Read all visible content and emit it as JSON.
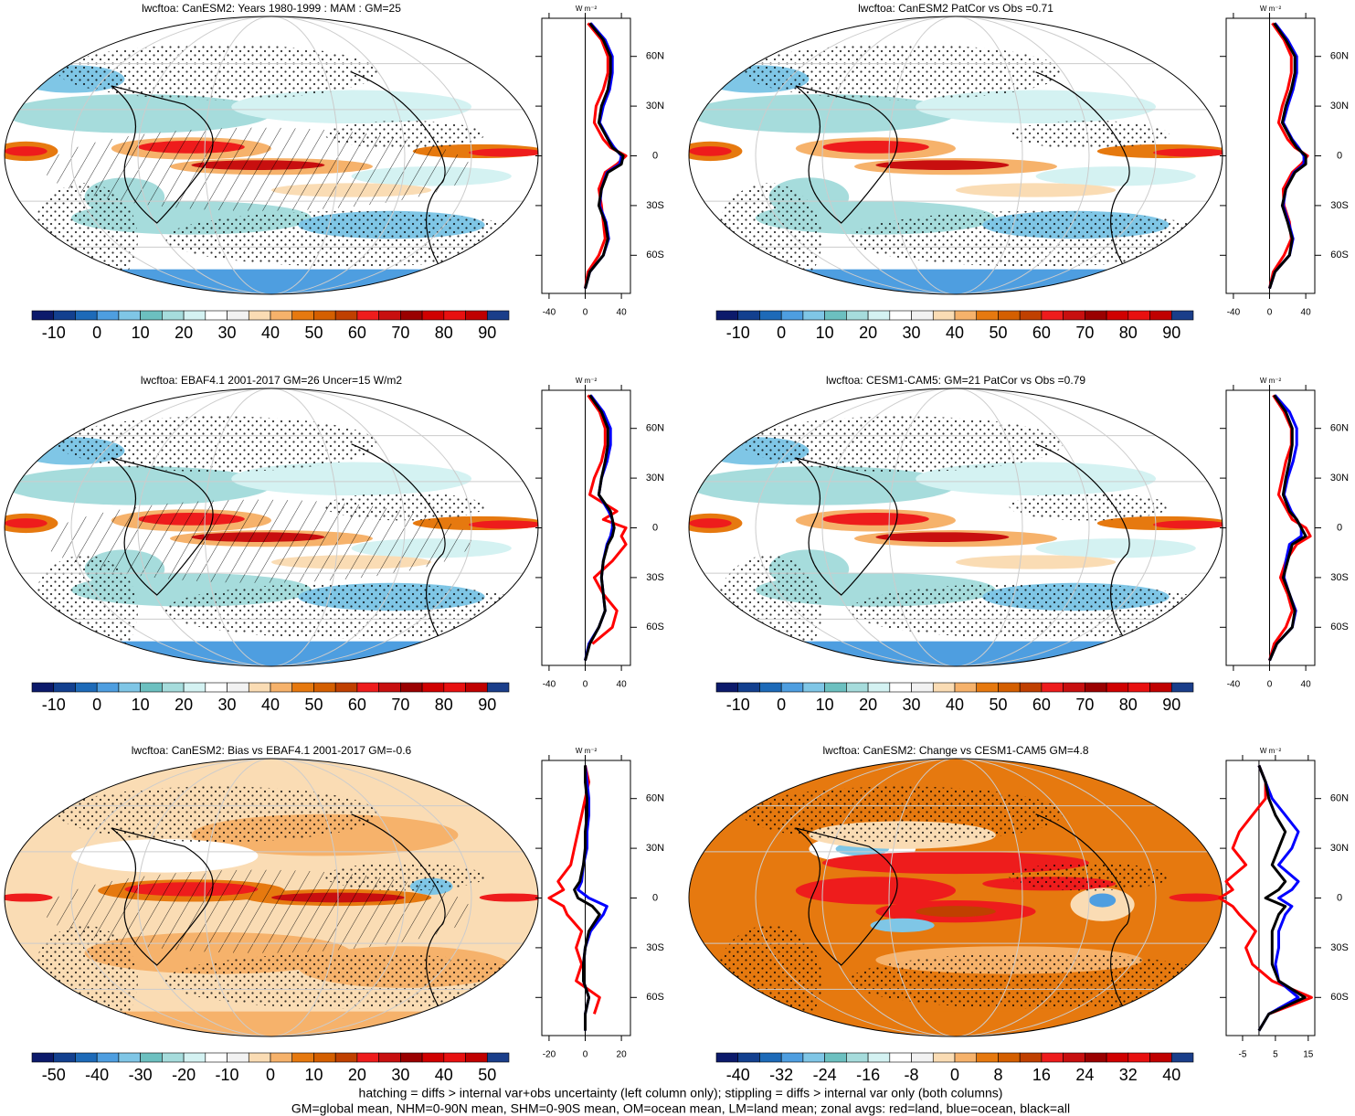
{
  "chart_data": [
    {
      "type": "map",
      "title": "lwcftoa: CanESM2: Years 1980-1999 : MAM : GM=25",
      "colorbar_ticks": [
        -10,
        0,
        10,
        20,
        30,
        40,
        50,
        60,
        70,
        80,
        90
      ],
      "zonal": {
        "type": "line",
        "unit": "W m⁻²",
        "y": [
          -80,
          -70,
          -60,
          -50,
          -40,
          -30,
          -20,
          -10,
          -5,
          0,
          5,
          10,
          20,
          30,
          40,
          50,
          60,
          70,
          80
        ],
        "xlim": [
          -48,
          50
        ],
        "xticks": [
          -40,
          0,
          40
        ],
        "ylim": [
          -83,
          83
        ],
        "yticks": [
          {
            "value": 60,
            "label": "60N"
          },
          {
            "value": 30,
            "label": "30N"
          },
          0,
          {
            "value": -30,
            "label": "30S"
          },
          {
            "value": -60,
            "label": "60S"
          }
        ],
        "series": [
          {
            "name": "land",
            "color": "#ff0000",
            "values": [
              0,
              3,
              15,
              22,
              20,
              18,
              15,
              22,
              35,
              45,
              28,
              20,
              10,
              12,
              20,
              25,
              25,
              18,
              3
            ]
          },
          {
            "name": "ocean",
            "color": "#0000ff",
            "values": [
              0,
              5,
              20,
              26,
              23,
              16,
              18,
              24,
              38,
              40,
              32,
              26,
              16,
              20,
              27,
              30,
              30,
              22,
              6
            ]
          },
          {
            "name": "all",
            "color": "#000000",
            "values": [
              0,
              5,
              20,
              25,
              22,
              15,
              18,
              25,
              40,
              42,
              30,
              25,
              15,
              18,
              25,
              28,
              28,
              20,
              5
            ]
          }
        ]
      }
    },
    {
      "type": "map",
      "title": "lwcftoa: CanESM2 PatCor vs Obs =0.71",
      "colorbar_ticks": [
        -10,
        0,
        10,
        20,
        30,
        40,
        50,
        60,
        70,
        80,
        90
      ],
      "zonal": {
        "type": "line",
        "unit": "W m⁻²",
        "y": [
          -80,
          -70,
          -60,
          -50,
          -40,
          -30,
          -20,
          -10,
          -5,
          0,
          5,
          10,
          20,
          30,
          40,
          50,
          60,
          70,
          80
        ],
        "xlim": [
          -48,
          50
        ],
        "xticks": [
          -40,
          0,
          40
        ],
        "ylim": [
          -83,
          83
        ],
        "yticks": [
          {
            "value": 60,
            "label": "60N"
          },
          {
            "value": 30,
            "label": "30N"
          },
          0,
          {
            "value": -30,
            "label": "30S"
          },
          {
            "value": -60,
            "label": "60S"
          }
        ],
        "series": [
          {
            "name": "land",
            "color": "#ff0000",
            "values": [
              0,
              4,
              16,
              24,
              22,
              16,
              15,
              25,
              35,
              42,
              28,
              20,
              10,
              14,
              20,
              24,
              24,
              16,
              3
            ]
          },
          {
            "name": "ocean",
            "color": "#0000ff",
            "values": [
              0,
              6,
              22,
              26,
              21,
              15,
              18,
              27,
              38,
              38,
              32,
              25,
              15,
              20,
              26,
              30,
              30,
              20,
              6
            ]
          },
          {
            "name": "all",
            "color": "#000000",
            "values": [
              0,
              6,
              22,
              25,
              20,
              14,
              18,
              28,
              40,
              40,
              30,
              24,
              14,
              18,
              24,
              28,
              28,
              18,
              5
            ]
          }
        ]
      }
    },
    {
      "type": "map",
      "title": "lwcftoa: EBAF4.1 2001-2017 GM=26 Uncer=15 W/m2",
      "colorbar_ticks": [
        -10,
        0,
        10,
        20,
        30,
        40,
        50,
        60,
        70,
        80,
        90
      ],
      "zonal": {
        "type": "line",
        "unit": "W m⁻²",
        "y": [
          -80,
          -70,
          -60,
          -50,
          -40,
          -30,
          -20,
          -10,
          -5,
          0,
          5,
          10,
          20,
          30,
          40,
          50,
          60,
          70,
          80
        ],
        "xlim": [
          -48,
          50
        ],
        "xticks": [
          -40,
          0,
          40
        ],
        "ylim": [
          -83,
          83
        ],
        "yticks": [
          {
            "value": 60,
            "label": "60N"
          },
          {
            "value": 30,
            "label": "30N"
          },
          0,
          {
            "value": -30,
            "label": "30S"
          },
          {
            "value": -60,
            "label": "60S"
          }
        ],
        "series": [
          {
            "name": "land",
            "color": "#ff0000",
            "values": [
              null,
              8,
              30,
              35,
              20,
              10,
              30,
              45,
              40,
              45,
              20,
              35,
              5,
              10,
              18,
              22,
              22,
              16,
              3
            ]
          },
          {
            "name": "ocean",
            "color": "#0000ff",
            "values": [
              0,
              4,
              15,
              22,
              20,
              18,
              20,
              24,
              28,
              30,
              30,
              26,
              15,
              18,
              24,
              28,
              28,
              20,
              6
            ]
          },
          {
            "name": "all",
            "color": "#000000",
            "values": [
              0,
              5,
              15,
              22,
              20,
              18,
              20,
              25,
              30,
              32,
              30,
              28,
              15,
              18,
              22,
              25,
              25,
              18,
              5
            ]
          }
        ]
      }
    },
    {
      "type": "map",
      "title": "lwcftoa: CESM1-CAM5: GM=21 PatCor vs Obs =0.79",
      "colorbar_ticks": [
        -10,
        0,
        10,
        20,
        30,
        40,
        50,
        60,
        70,
        80,
        90
      ],
      "zonal": {
        "type": "line",
        "unit": "W m⁻²",
        "y": [
          -80,
          -70,
          -60,
          -50,
          -40,
          -30,
          -20,
          -10,
          -5,
          0,
          5,
          10,
          20,
          30,
          40,
          50,
          60,
          70,
          80
        ],
        "xlim": [
          -48,
          50
        ],
        "xticks": [
          -40,
          0,
          40
        ],
        "ylim": [
          -83,
          83
        ],
        "yticks": [
          {
            "value": 60,
            "label": "60N"
          },
          {
            "value": 30,
            "label": "30N"
          },
          0,
          {
            "value": -30,
            "label": "30S"
          },
          {
            "value": -60,
            "label": "60S"
          }
        ],
        "series": [
          {
            "name": "land",
            "color": "#ff0000",
            "values": [
              0,
              5,
              18,
              25,
              20,
              12,
              18,
              30,
              45,
              40,
              25,
              20,
              10,
              14,
              18,
              24,
              24,
              16,
              4
            ]
          },
          {
            "name": "ocean",
            "color": "#0000ff",
            "values": [
              0,
              8,
              25,
              29,
              22,
              16,
              18,
              22,
              35,
              35,
              30,
              24,
              16,
              20,
              26,
              30,
              30,
              22,
              6
            ]
          },
          {
            "name": "all",
            "color": "#000000",
            "values": [
              0,
              8,
              25,
              28,
              22,
              15,
              20,
              25,
              40,
              35,
              30,
              22,
              15,
              18,
              22,
              25,
              25,
              18,
              5
            ]
          }
        ]
      }
    },
    {
      "type": "map",
      "title": "lwcftoa: CanESM2: Bias vs EBAF4.1 2001-2017 GM=-0.6",
      "colorbar_ticks": [
        -50,
        -40,
        -30,
        -20,
        -10,
        0,
        10,
        20,
        30,
        40,
        50
      ],
      "zonal": {
        "type": "line",
        "unit": "W m⁻²",
        "y": [
          -80,
          -70,
          -60,
          -50,
          -40,
          -30,
          -20,
          -10,
          -5,
          0,
          5,
          10,
          20,
          30,
          40,
          50,
          60,
          70,
          80
        ],
        "xlim": [
          -24,
          25
        ],
        "xticks": [
          -20,
          0,
          20
        ],
        "ylim": [
          -83,
          83
        ],
        "yticks": [
          {
            "value": 60,
            "label": "60N"
          },
          {
            "value": 30,
            "label": "30N"
          },
          0,
          {
            "value": -30,
            "label": "30S"
          },
          {
            "value": -60,
            "label": "60S"
          }
        ],
        "series": [
          {
            "name": "land",
            "color": "#ff0000",
            "values": [
              null,
              5,
              8,
              -5,
              -2,
              -5,
              -2,
              -10,
              -12,
              -20,
              -12,
              -15,
              -8,
              -6,
              -4,
              -2,
              0,
              2,
              0
            ]
          },
          {
            "name": "ocean",
            "color": "#0000ff",
            "values": [
              0,
              0,
              2,
              -1,
              -1,
              0,
              3,
              10,
              12,
              2,
              -4,
              -2,
              -1,
              1,
              1,
              2,
              2,
              1,
              0
            ]
          },
          {
            "name": "all",
            "color": "#000000",
            "values": [
              0,
              0,
              2,
              -1,
              -1,
              0,
              2,
              8,
              4,
              -4,
              -6,
              -3,
              -1,
              0,
              0,
              1,
              1,
              0,
              0
            ]
          }
        ]
      }
    },
    {
      "type": "map",
      "title": "lwcftoa: CanESM2: Change vs CESM1-CAM5 GM=4.8",
      "colorbar_ticks": [
        -40,
        -32,
        -24,
        -16,
        -8,
        0,
        8,
        16,
        24,
        32,
        40
      ],
      "zonal": {
        "type": "line",
        "unit": "W m⁻²",
        "y": [
          -80,
          -70,
          -60,
          -50,
          -40,
          -30,
          -20,
          -10,
          -5,
          0,
          5,
          10,
          20,
          30,
          40,
          50,
          60,
          70,
          80
        ],
        "xlim": [
          -10,
          17
        ],
        "xticks": [
          -5,
          5,
          15
        ],
        "ylim": [
          -83,
          83
        ],
        "yticks": [
          {
            "value": 60,
            "label": "60N"
          },
          {
            "value": 30,
            "label": "30N"
          },
          0,
          {
            "value": -30,
            "label": "30S"
          },
          {
            "value": -60,
            "label": "60S"
          }
        ],
        "series": [
          {
            "name": "land",
            "color": "#ff0000",
            "values": [
              null,
              3,
              16,
              4,
              -2,
              -4,
              -1,
              -6,
              -8,
              -12,
              -8,
              -10,
              -4,
              -8,
              -6,
              -2,
              2,
              2,
              0
            ]
          },
          {
            "name": "ocean",
            "color": "#0000ff",
            "values": [
              0,
              3,
              12,
              6,
              5,
              6,
              6,
              8,
              10,
              6,
              10,
              12,
              6,
              10,
              12,
              8,
              4,
              2,
              0
            ]
          },
          {
            "name": "all",
            "color": "#000000",
            "values": [
              0,
              3,
              14,
              6,
              4,
              4,
              4,
              6,
              8,
              2,
              6,
              8,
              4,
              6,
              8,
              5,
              3,
              2,
              0
            ]
          }
        ]
      }
    }
  ],
  "footer": [
    "hatching = diffs > internal var+obs uncertainty (left column only); stippling = diffs > internal var only (both columns)",
    "GM=global mean, NHM=0-90N mean, SHM=0-90S mean, OM=ocean mean, LM=land mean; zonal avgs: red=land, blue=ocean, black=all"
  ]
}
